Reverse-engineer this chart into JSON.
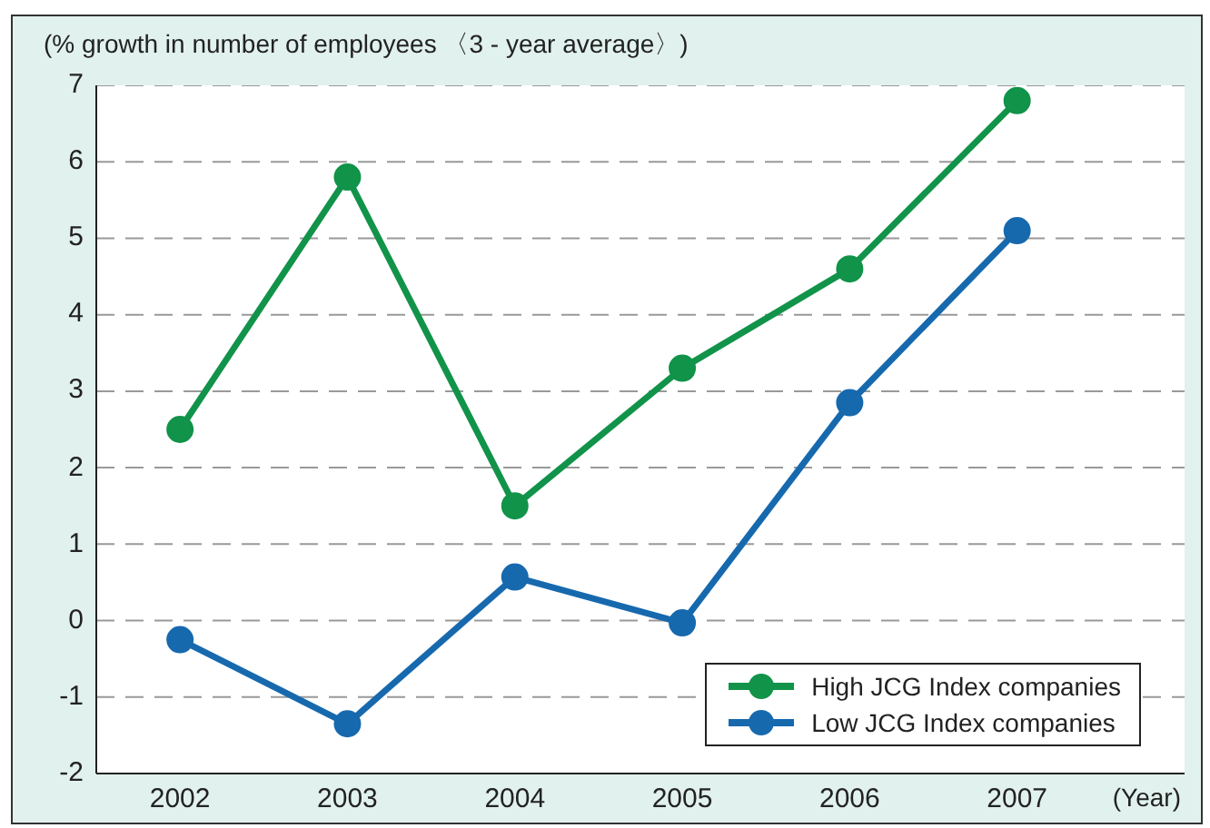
{
  "chart_data": {
    "type": "line",
    "ylabel": "(% growth in number of employees 〈3 - year average〉)",
    "xlabel": "(Year)",
    "categories": [
      "2002",
      "2003",
      "2004",
      "2005",
      "2006",
      "2007"
    ],
    "series": [
      {
        "name": "High JCG Index companies",
        "color": "#11934a",
        "values": [
          2.5,
          5.8,
          1.5,
          3.3,
          4.6,
          6.8
        ]
      },
      {
        "name": "Low JCG Index companies",
        "color": "#1769ae",
        "values": [
          -0.25,
          -1.35,
          0.57,
          -0.03,
          2.85,
          5.1
        ]
      }
    ],
    "ylim": [
      -2,
      7
    ],
    "yticks": [
      -2,
      -1,
      0,
      1,
      2,
      3,
      4,
      5,
      6,
      7
    ],
    "grid": "y",
    "legend": "bottom right",
    "marker": "circle",
    "line_style": "solid"
  }
}
